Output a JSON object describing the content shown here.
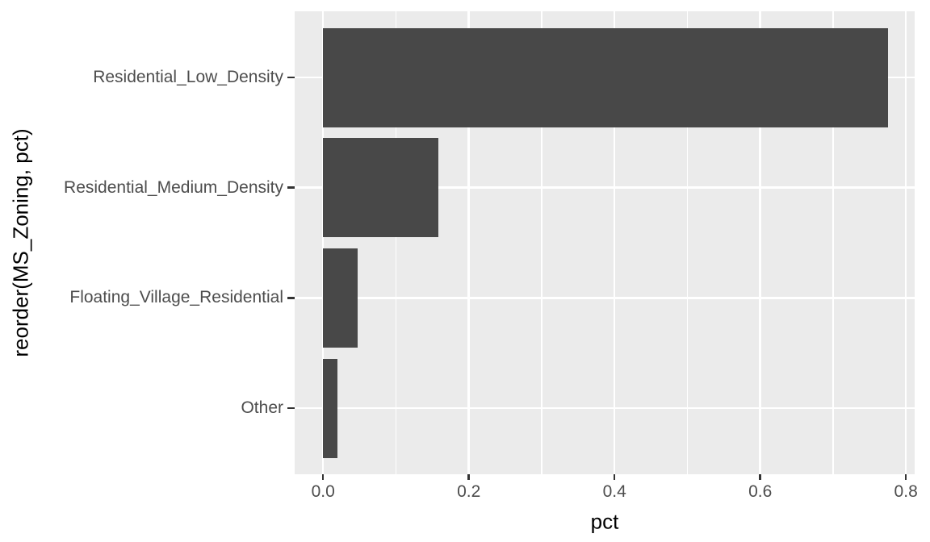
{
  "chart_data": {
    "type": "bar",
    "orientation": "horizontal",
    "title": "",
    "xlabel": "pct",
    "ylabel": "reorder(MS_Zoning, pct)",
    "categories": [
      "Residential_Low_Density",
      "Residential_Medium_Density",
      "Floating_Village_Residential",
      "Other"
    ],
    "values": [
      0.775,
      0.158,
      0.047,
      0.02
    ],
    "x_ticks": [
      0.0,
      0.2,
      0.4,
      0.6,
      0.8
    ],
    "x_tick_labels": [
      "0.0",
      "0.2",
      "0.4",
      "0.6",
      "0.8"
    ],
    "x_minor_ticks": [
      0.1,
      0.3,
      0.5,
      0.7
    ],
    "xlim": [
      -0.039,
      0.812
    ],
    "grid": true,
    "legend": false,
    "style": {
      "bar_color": "#484848",
      "panel_background": "#EBEBEB",
      "grid_major_color": "#FFFFFF",
      "grid_minor_color": "#FFFFFF",
      "axis_text_color": "#4D4D4D",
      "axis_title_color": "#000000",
      "tick_mark_color": "#333333",
      "figure_background": "#FFFFFF"
    }
  }
}
